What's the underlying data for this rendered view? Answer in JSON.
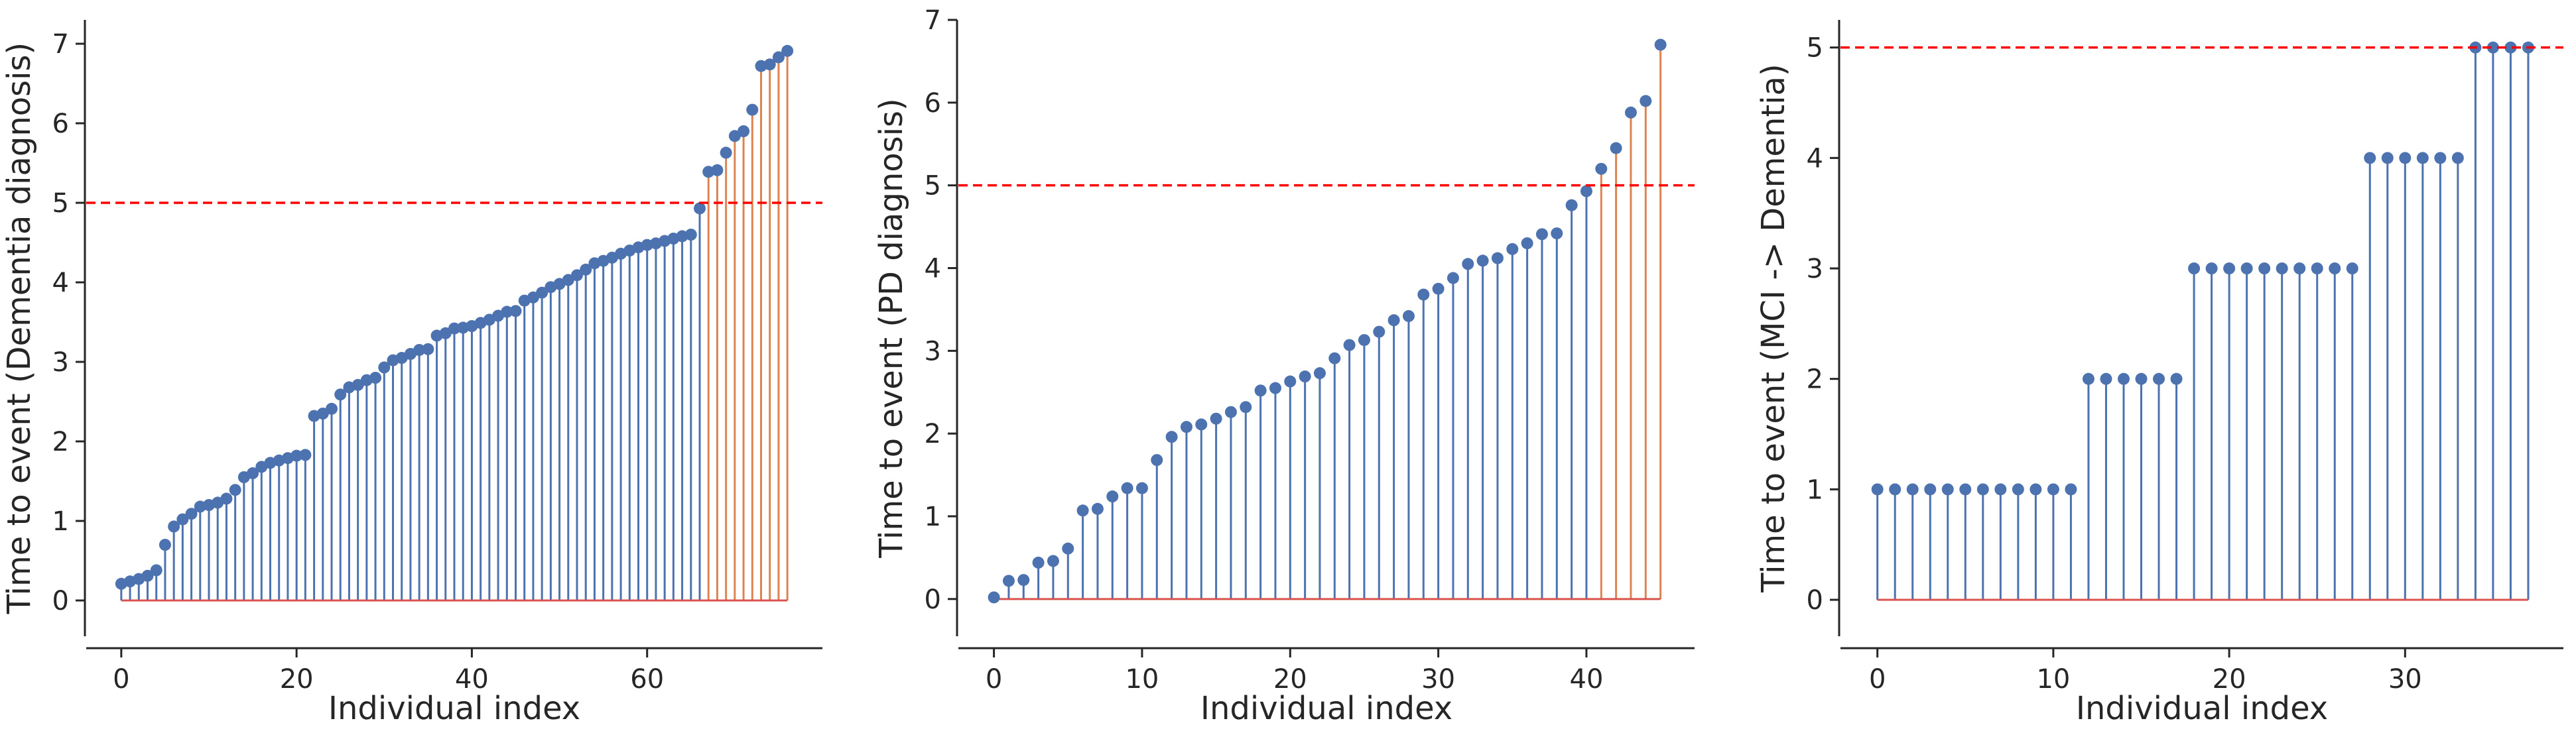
{
  "chart_data": [
    {
      "type": "stem",
      "xlabel": "Individual index",
      "ylabel": "Time to event (Dementia diagnosis)",
      "xlim": [
        -4,
        80
      ],
      "ylim": [
        -0.45,
        7.3
      ],
      "xticks": [
        0,
        20,
        40,
        60
      ],
      "yticks": [
        0,
        1,
        2,
        3,
        4,
        5,
        6,
        7
      ],
      "threshold": 5,
      "threshold_color": "#ff0000",
      "baseline_color": "#d9534f",
      "colors": {
        "below": "#4c72b0",
        "above": "#dd8452"
      },
      "x": [
        0,
        1,
        2,
        3,
        4,
        5,
        6,
        7,
        8,
        9,
        10,
        11,
        12,
        13,
        14,
        15,
        16,
        17,
        18,
        19,
        20,
        21,
        22,
        23,
        24,
        25,
        26,
        27,
        28,
        29,
        30,
        31,
        32,
        33,
        34,
        35,
        36,
        37,
        38,
        39,
        40,
        41,
        42,
        43,
        44,
        45,
        46,
        47,
        48,
        49,
        50,
        51,
        52,
        53,
        54,
        55,
        56,
        57,
        58,
        59,
        60,
        61,
        62,
        63,
        64,
        65,
        66,
        67,
        68,
        69,
        70,
        71,
        72,
        73,
        74,
        75,
        76
      ],
      "values": [
        0.21,
        0.24,
        0.27,
        0.31,
        0.38,
        0.7,
        0.93,
        1.02,
        1.09,
        1.18,
        1.2,
        1.23,
        1.28,
        1.39,
        1.55,
        1.6,
        1.68,
        1.73,
        1.76,
        1.79,
        1.82,
        1.83,
        2.32,
        2.35,
        2.41,
        2.59,
        2.68,
        2.71,
        2.77,
        2.8,
        2.93,
        3.02,
        3.05,
        3.1,
        3.15,
        3.16,
        3.33,
        3.36,
        3.42,
        3.43,
        3.45,
        3.49,
        3.53,
        3.58,
        3.63,
        3.64,
        3.77,
        3.81,
        3.87,
        3.94,
        3.98,
        4.03,
        4.09,
        4.16,
        4.24,
        4.27,
        4.31,
        4.36,
        4.4,
        4.44,
        4.47,
        4.49,
        4.52,
        4.55,
        4.58,
        4.6,
        4.93,
        5.39,
        5.41,
        5.63,
        5.84,
        5.9,
        6.17,
        6.72,
        6.74,
        6.83,
        6.91
      ]
    },
    {
      "type": "stem",
      "xlabel": "Individual index",
      "ylabel": "Time to event (PD diagnosis)",
      "xlim": [
        -2.4,
        47.3
      ],
      "ylim": [
        -0.45,
        7.0
      ],
      "xticks": [
        0,
        10,
        20,
        30,
        40
      ],
      "yticks": [
        0,
        1,
        2,
        3,
        4,
        5,
        6,
        7
      ],
      "threshold": 5,
      "threshold_color": "#ff0000",
      "baseline_color": "#d9534f",
      "colors": {
        "below": "#4c72b0",
        "above": "#dd8452"
      },
      "x": [
        0,
        1,
        2,
        3,
        4,
        5,
        6,
        7,
        8,
        9,
        10,
        11,
        12,
        13,
        14,
        15,
        16,
        17,
        18,
        19,
        20,
        21,
        22,
        23,
        24,
        25,
        26,
        27,
        28,
        29,
        30,
        31,
        32,
        33,
        34,
        35,
        36,
        37,
        38,
        39,
        40,
        41,
        42,
        43,
        44,
        45
      ],
      "values": [
        0.02,
        0.22,
        0.23,
        0.44,
        0.46,
        0.61,
        1.07,
        1.09,
        1.24,
        1.34,
        1.34,
        1.68,
        1.96,
        2.08,
        2.11,
        2.18,
        2.26,
        2.32,
        2.52,
        2.55,
        2.63,
        2.69,
        2.73,
        2.91,
        3.07,
        3.13,
        3.23,
        3.37,
        3.42,
        3.68,
        3.75,
        3.88,
        4.05,
        4.09,
        4.12,
        4.23,
        4.3,
        4.41,
        4.42,
        4.76,
        4.93,
        5.2,
        5.45,
        5.88,
        6.02,
        6.7
      ]
    },
    {
      "type": "stem",
      "xlabel": "Individual index",
      "ylabel": "Time to event (MCI -> Dementia)",
      "xlim": [
        -2.1,
        39
      ],
      "ylim": [
        -0.33,
        5.25
      ],
      "xticks": [
        0,
        10,
        20,
        30
      ],
      "yticks": [
        0,
        1,
        2,
        3,
        4,
        5
      ],
      "threshold": 5,
      "threshold_color": "#ff0000",
      "baseline_color": "#d9534f",
      "colors": {
        "below": "#4c72b0",
        "above": "#dd8452"
      },
      "x": [
        0,
        1,
        2,
        3,
        4,
        5,
        6,
        7,
        8,
        9,
        10,
        11,
        12,
        13,
        14,
        15,
        16,
        17,
        18,
        19,
        20,
        21,
        22,
        23,
        24,
        25,
        26,
        27,
        28,
        29,
        30,
        31,
        32,
        33,
        34,
        35,
        36,
        37
      ],
      "values": [
        1,
        1,
        1,
        1,
        1,
        1,
        1,
        1,
        1,
        1,
        1,
        1,
        2,
        2,
        2,
        2,
        2,
        2,
        3,
        3,
        3,
        3,
        3,
        3,
        3,
        3,
        3,
        3,
        4,
        4,
        4,
        4,
        4,
        4,
        5,
        5,
        5,
        5
      ]
    }
  ]
}
